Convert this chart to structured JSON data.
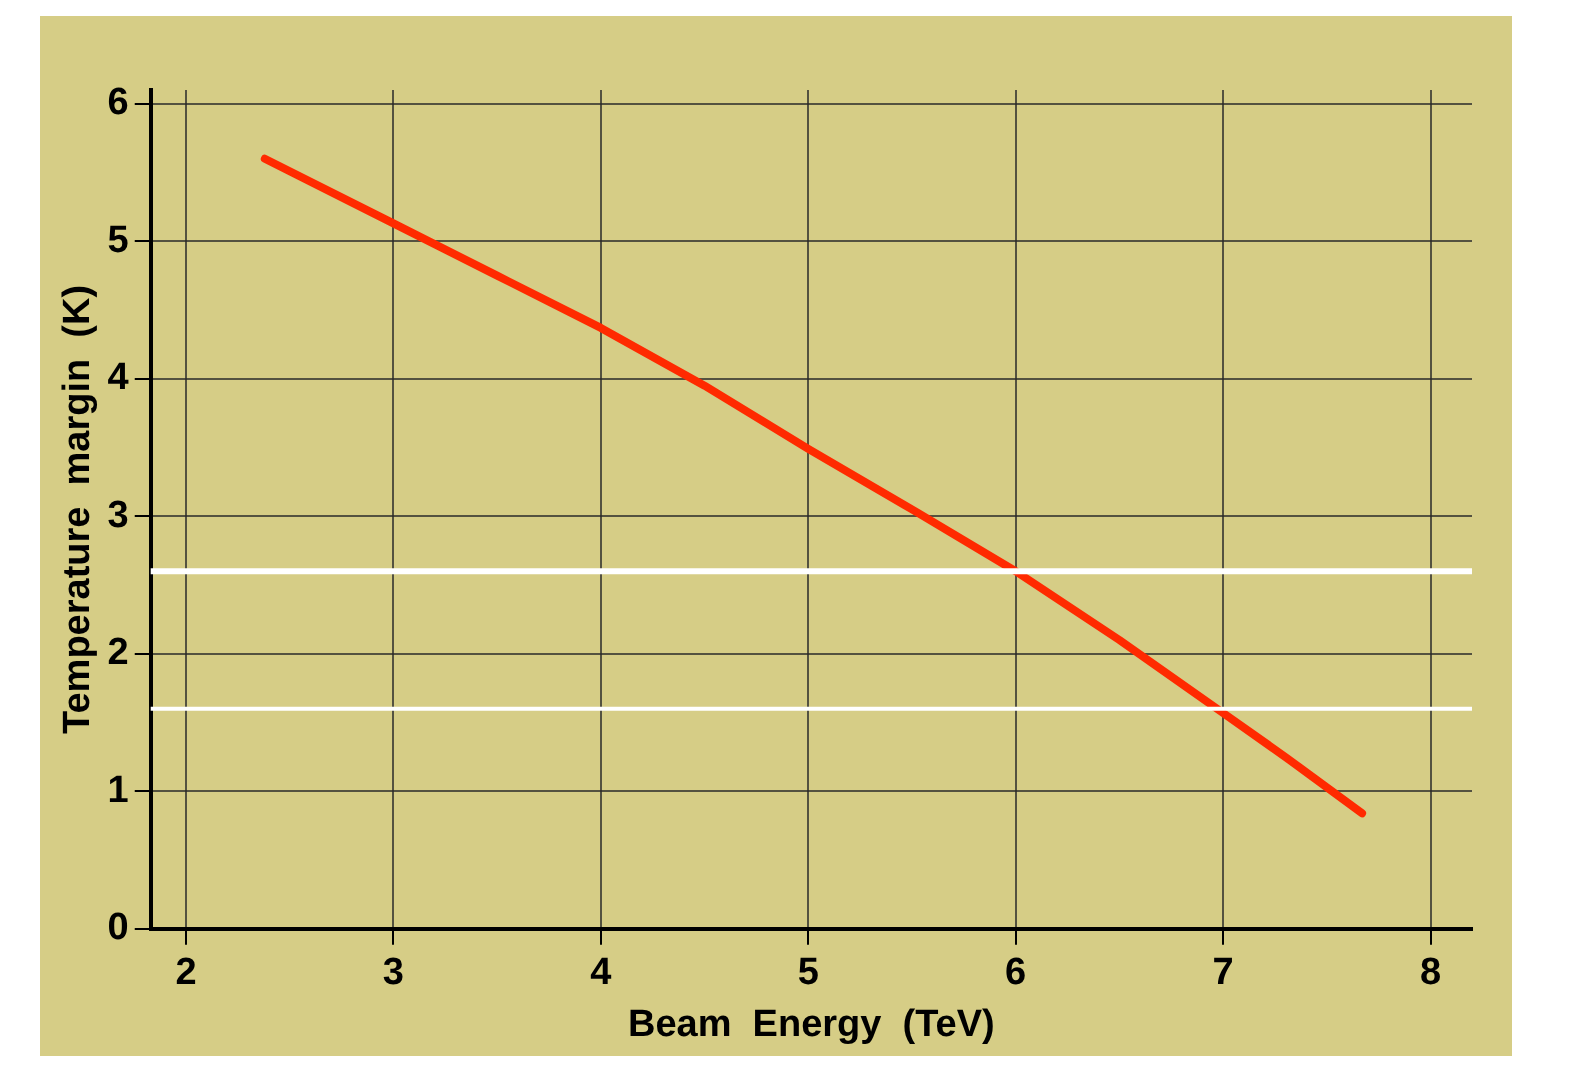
{
  "chart_data": {
    "type": "line",
    "xlabel": "Beam  Energy  (TeV)",
    "ylabel": "Temperature  margin  (K)",
    "series": [
      {
        "color": "#ff2a00",
        "x": [
          2.38,
          3,
          3.5,
          4,
          4.5,
          5,
          5.5,
          6,
          6.5,
          7,
          7.3,
          7.67
        ],
        "values": [
          5.6,
          5.13,
          4.75,
          4.37,
          3.95,
          3.49,
          3.05,
          2.6,
          2.1,
          1.57,
          1.25,
          0.84
        ]
      }
    ],
    "xlim": [
      1.83,
      8.2
    ],
    "xticks": [
      2,
      3,
      4,
      5,
      6,
      7,
      8
    ],
    "ylim": [
      0,
      6.1
    ],
    "yticks": [
      0,
      1,
      2,
      3,
      4,
      5,
      6
    ],
    "ref_lines": [
      {
        "axis": "y",
        "value": 2.6,
        "color": "#ffffff"
      },
      {
        "axis": "y",
        "value": 1.6,
        "color": "#ffffff"
      }
    ],
    "grid": true,
    "legend": false,
    "marker": "none",
    "line_style": "solid"
  }
}
